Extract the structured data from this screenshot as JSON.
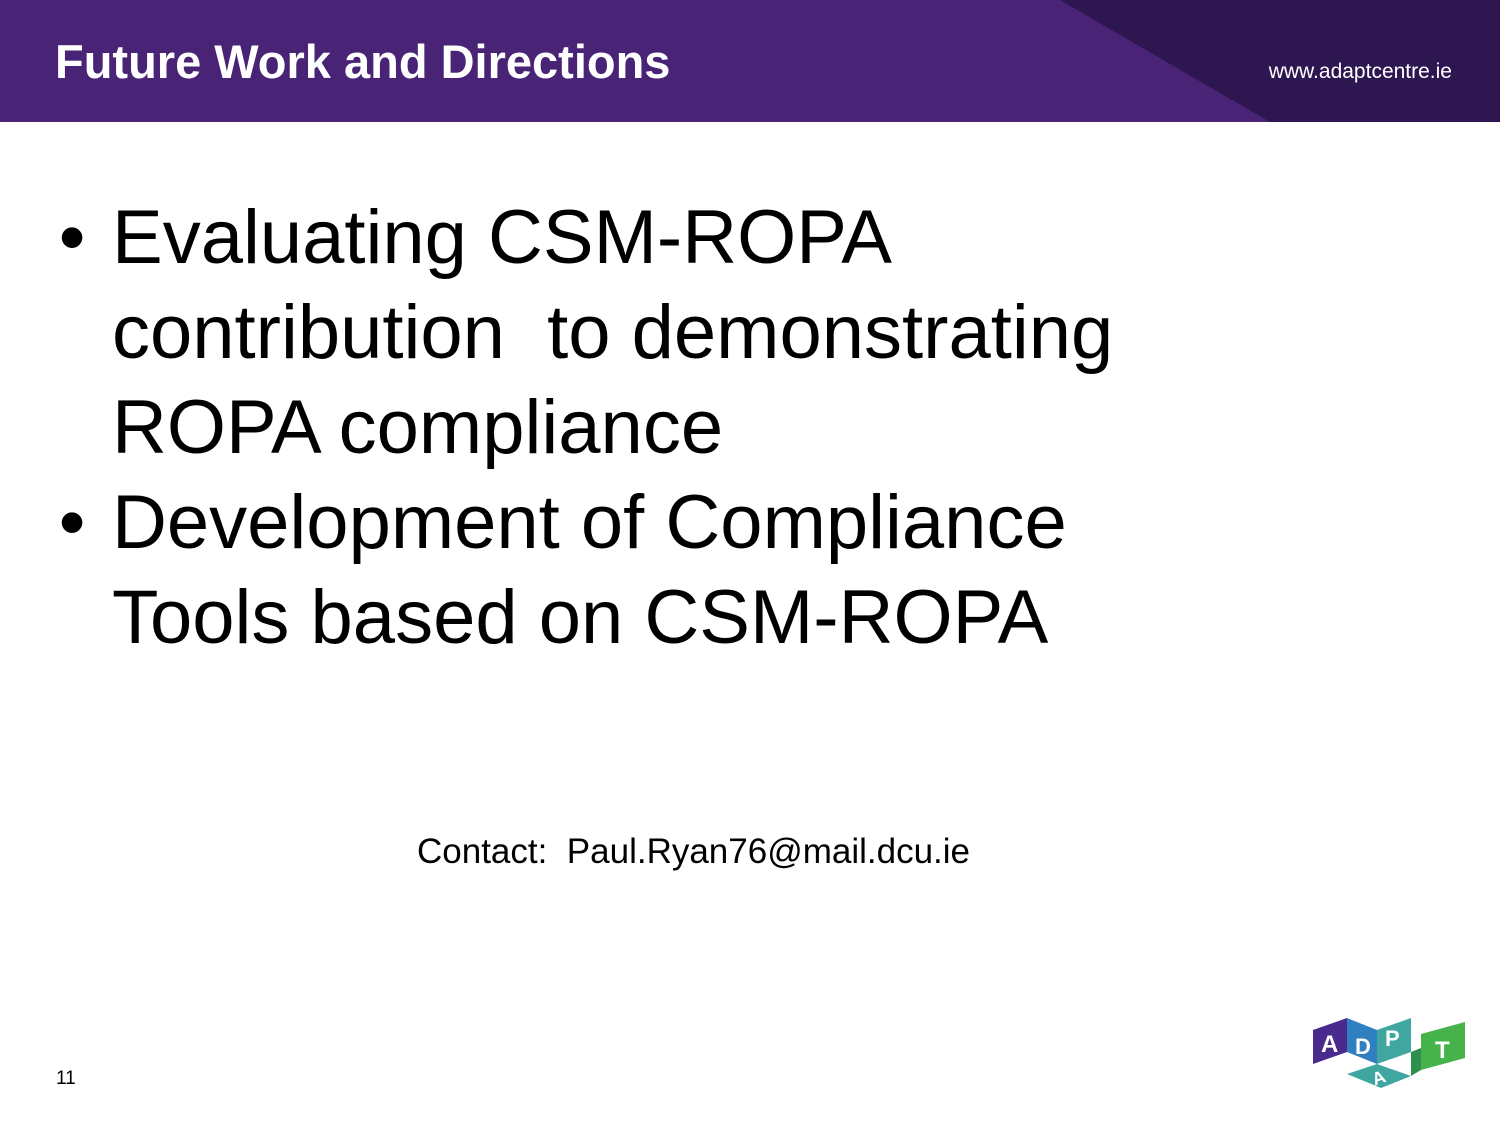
{
  "header": {
    "title": "Future Work and Directions",
    "url": "www.adaptcentre.ie",
    "colors": {
      "primary": "#482376",
      "dark": "#2e1650"
    }
  },
  "bullets": [
    {
      "text": "Evaluating CSM-ROPA\ncontribution  to demonstrating\nROPA compliance"
    },
    {
      "text": "Development of Compliance\nTools based on CSM-ROPA"
    }
  ],
  "bullet_symbol": "•",
  "contact": "Contact:  Paul.Ryan76@mail.dcu.ie",
  "page_number": "11",
  "logo": {
    "letters": [
      "A",
      "D",
      "P",
      "A",
      "T"
    ],
    "colors": {
      "purple": "#4a2a8c",
      "blue": "#2f7fc1",
      "teal": "#3fa6a0",
      "green": "#45b34a"
    }
  }
}
